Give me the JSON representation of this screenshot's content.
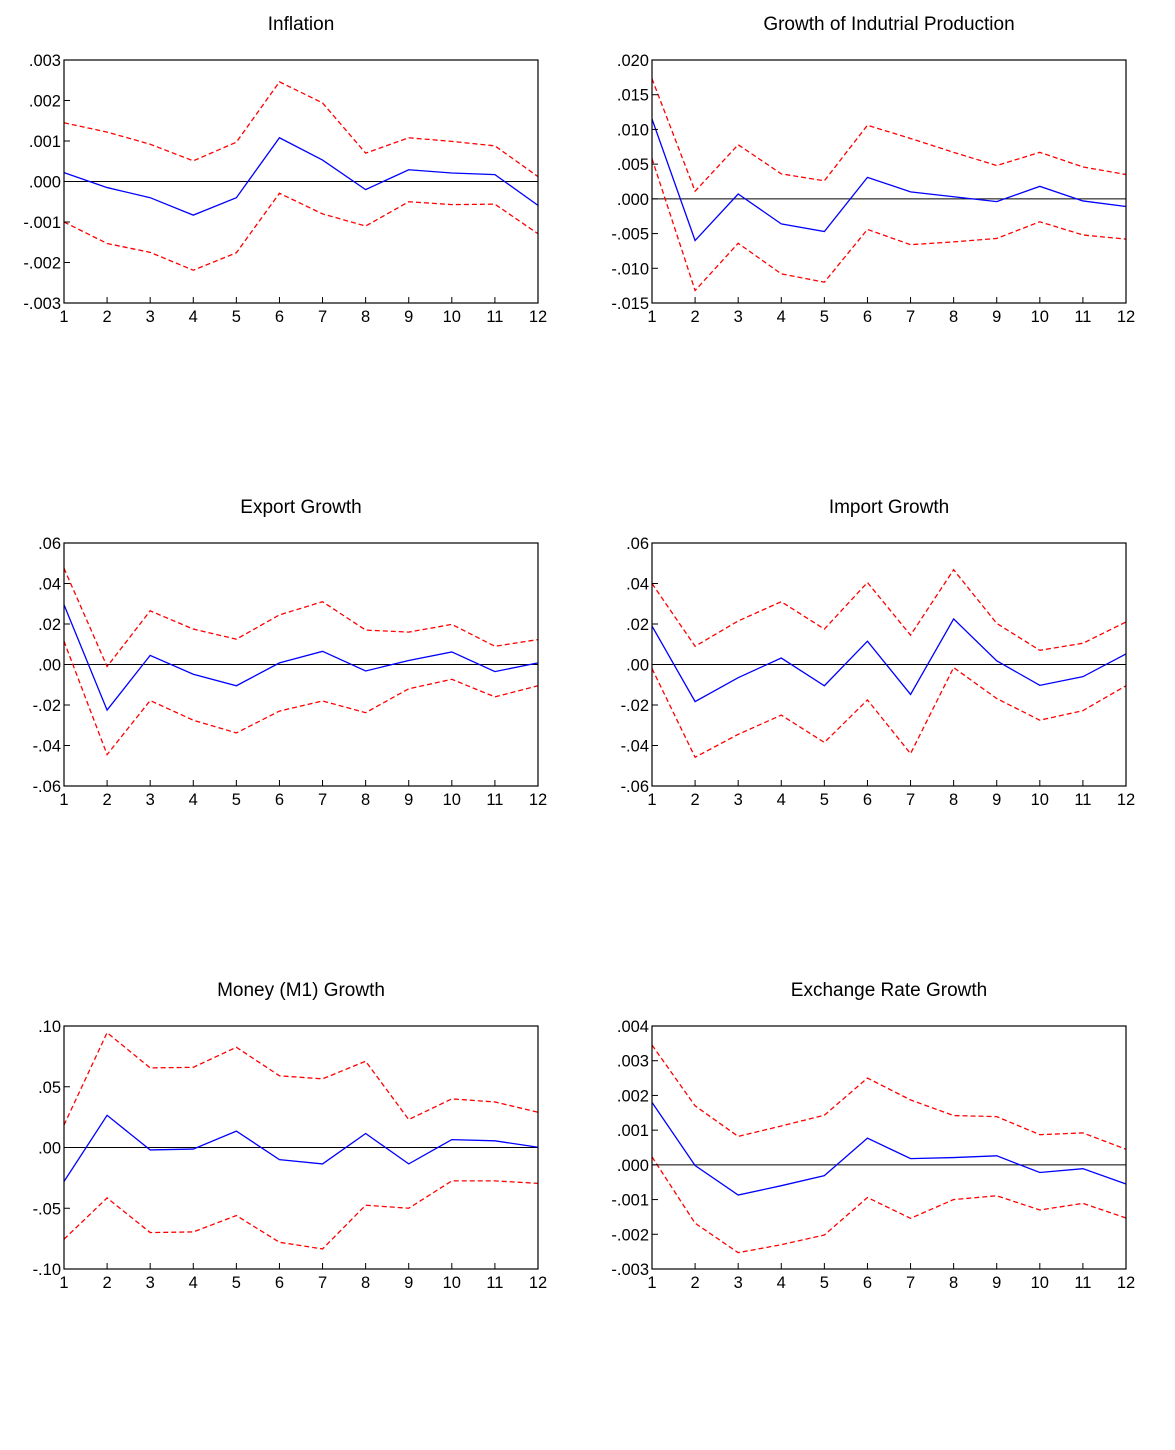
{
  "chart_data": [
    {
      "type": "line",
      "title": "Inflation",
      "x": [
        1,
        2,
        3,
        4,
        5,
        6,
        7,
        8,
        9,
        10,
        11,
        12
      ],
      "ylim": [
        -0.003,
        0.003
      ],
      "yticks": [
        0.003,
        0.002,
        0.001,
        0.0,
        -0.001,
        -0.002,
        -0.003
      ],
      "ytick_labels": [
        ".003",
        ".002",
        ".001",
        ".000",
        "-.001",
        "-.002",
        "-.003"
      ],
      "xtick_labels": [
        "1",
        "2",
        "3",
        "4",
        "5",
        "6",
        "7",
        "8",
        "9",
        "10",
        "11",
        "12"
      ],
      "zero_line": true,
      "colors": {
        "response": "#0000ff",
        "bands": "#ff0000",
        "zero": "#000000"
      },
      "series": [
        {
          "role": "response",
          "values": [
            0.00022,
            -0.00015,
            -0.0004,
            -0.00083,
            -0.0004,
            0.00108,
            0.00053,
            -0.0002,
            0.00029,
            0.00021,
            0.00017,
            -0.00059
          ]
        },
        {
          "role": "upper",
          "values": [
            0.00145,
            0.00122,
            0.00092,
            0.00051,
            0.00097,
            0.00246,
            0.00194,
            0.0007,
            0.00108,
            0.00099,
            0.00088,
            0.00012
          ]
        },
        {
          "role": "lower",
          "values": [
            -0.001,
            -0.00153,
            -0.00175,
            -0.00219,
            -0.00176,
            -0.00029,
            -0.0008,
            -0.0011,
            -0.0005,
            -0.00057,
            -0.00056,
            -0.00129
          ]
        }
      ]
    },
    {
      "type": "line",
      "title": "Growth of Indutrial Production",
      "x": [
        1,
        2,
        3,
        4,
        5,
        6,
        7,
        8,
        9,
        10,
        11,
        12
      ],
      "ylim": [
        -0.015,
        0.02
      ],
      "yticks": [
        0.02,
        0.015,
        0.01,
        0.005,
        0.0,
        -0.005,
        -0.01,
        -0.015
      ],
      "ytick_labels": [
        ".020",
        ".015",
        ".010",
        ".005",
        ".000",
        "-.005",
        "-.010",
        "-.015"
      ],
      "xtick_labels": [
        "1",
        "2",
        "3",
        "4",
        "5",
        "6",
        "7",
        "8",
        "9",
        "10",
        "11",
        "12"
      ],
      "zero_line": true,
      "colors": {
        "response": "#0000ff",
        "bands": "#ff0000",
        "zero": "#000000"
      },
      "series": [
        {
          "role": "response",
          "values": [
            0.0115,
            -0.006,
            0.0007,
            -0.0036,
            -0.0047,
            0.0031,
            0.001,
            0.0003,
            -0.0004,
            0.0018,
            -0.0003,
            -0.0011
          ]
        },
        {
          "role": "upper",
          "values": [
            0.0173,
            0.0011,
            0.0078,
            0.0036,
            0.0026,
            0.0106,
            0.0087,
            0.0067,
            0.0048,
            0.0067,
            0.0046,
            0.0035
          ]
        },
        {
          "role": "lower",
          "values": [
            0.0058,
            -0.0132,
            -0.0064,
            -0.0108,
            -0.012,
            -0.0044,
            -0.0066,
            -0.0062,
            -0.0057,
            -0.0033,
            -0.0052,
            -0.0058
          ]
        }
      ]
    },
    {
      "type": "line",
      "title": "Export Growth",
      "x": [
        1,
        2,
        3,
        4,
        5,
        6,
        7,
        8,
        9,
        10,
        11,
        12
      ],
      "ylim": [
        -0.06,
        0.06
      ],
      "yticks": [
        0.06,
        0.04,
        0.02,
        0.0,
        -0.02,
        -0.04,
        -0.06
      ],
      "ytick_labels": [
        ".06",
        ".04",
        ".02",
        ".00",
        "-.02",
        "-.04",
        "-.06"
      ],
      "xtick_labels": [
        "1",
        "2",
        "3",
        "4",
        "5",
        "6",
        "7",
        "8",
        "9",
        "10",
        "11",
        "12"
      ],
      "zero_line": true,
      "colors": {
        "response": "#0000ff",
        "bands": "#ff0000",
        "zero": "#000000"
      },
      "series": [
        {
          "role": "response",
          "values": [
            0.0295,
            -0.0225,
            0.0045,
            -0.0048,
            -0.0105,
            0.0008,
            0.0065,
            -0.0032,
            0.002,
            0.0062,
            -0.0035,
            0.0008
          ]
        },
        {
          "role": "upper",
          "values": [
            0.0475,
            -0.001,
            0.0265,
            0.0175,
            0.0125,
            0.0245,
            0.031,
            0.017,
            0.016,
            0.0198,
            0.009,
            0.0123
          ]
        },
        {
          "role": "lower",
          "values": [
            0.0115,
            -0.0445,
            -0.0178,
            -0.0275,
            -0.0338,
            -0.023,
            -0.018,
            -0.0238,
            -0.012,
            -0.0073,
            -0.016,
            -0.0105
          ]
        }
      ]
    },
    {
      "type": "line",
      "title": "Import Growth",
      "x": [
        1,
        2,
        3,
        4,
        5,
        6,
        7,
        8,
        9,
        10,
        11,
        12
      ],
      "ylim": [
        -0.06,
        0.06
      ],
      "yticks": [
        0.06,
        0.04,
        0.02,
        0.0,
        -0.02,
        -0.04,
        -0.06
      ],
      "ytick_labels": [
        ".06",
        ".04",
        ".02",
        ".00",
        "-.02",
        "-.04",
        "-.06"
      ],
      "xtick_labels": [
        "1",
        "2",
        "3",
        "4",
        "5",
        "6",
        "7",
        "8",
        "9",
        "10",
        "11",
        "12"
      ],
      "zero_line": true,
      "colors": {
        "response": "#0000ff",
        "bands": "#ff0000",
        "zero": "#000000"
      },
      "series": [
        {
          "role": "response",
          "values": [
            0.019,
            -0.0183,
            -0.0065,
            0.0032,
            -0.0105,
            0.0115,
            -0.0148,
            0.0225,
            0.0018,
            -0.0103,
            -0.006,
            0.0052
          ]
        },
        {
          "role": "upper",
          "values": [
            0.04,
            0.009,
            0.0215,
            0.031,
            0.0175,
            0.0405,
            0.0145,
            0.0468,
            0.0203,
            0.007,
            0.0105,
            0.021
          ]
        },
        {
          "role": "lower",
          "values": [
            -0.002,
            -0.0458,
            -0.0345,
            -0.025,
            -0.0385,
            -0.0175,
            -0.044,
            -0.0015,
            -0.0168,
            -0.0275,
            -0.0228,
            -0.0105
          ]
        }
      ]
    },
    {
      "type": "line",
      "title": "Money (M1) Growth",
      "x": [
        1,
        2,
        3,
        4,
        5,
        6,
        7,
        8,
        9,
        10,
        11,
        12
      ],
      "ylim": [
        -0.1,
        0.1
      ],
      "yticks": [
        0.1,
        0.05,
        0.0,
        -0.05,
        -0.1
      ],
      "ytick_labels": [
        ".10",
        ".05",
        ".00",
        "-.05",
        "-.10"
      ],
      "xtick_labels": [
        "1",
        "2",
        "3",
        "4",
        "5",
        "6",
        "7",
        "8",
        "9",
        "10",
        "11",
        "12"
      ],
      "zero_line": true,
      "colors": {
        "response": "#0000ff",
        "bands": "#ff0000",
        "zero": "#000000"
      },
      "series": [
        {
          "role": "response",
          "values": [
            -0.028,
            0.0265,
            -0.002,
            -0.0013,
            0.0135,
            -0.01,
            -0.0135,
            0.0115,
            -0.0135,
            0.0065,
            0.0055,
            0.0002
          ]
        },
        {
          "role": "upper",
          "values": [
            0.0185,
            0.0945,
            0.0655,
            0.066,
            0.0825,
            0.059,
            0.0565,
            0.071,
            0.023,
            0.04,
            0.0375,
            0.029
          ]
        },
        {
          "role": "lower",
          "values": [
            -0.0755,
            -0.0415,
            -0.07,
            -0.0695,
            -0.056,
            -0.078,
            -0.0835,
            -0.0475,
            -0.05,
            -0.0275,
            -0.0275,
            -0.0295
          ]
        }
      ]
    },
    {
      "type": "line",
      "title": "Exchange Rate Growth",
      "x": [
        1,
        2,
        3,
        4,
        5,
        6,
        7,
        8,
        9,
        10,
        11,
        12
      ],
      "ylim": [
        -0.003,
        0.004
      ],
      "yticks": [
        0.004,
        0.003,
        0.002,
        0.001,
        0.0,
        -0.001,
        -0.002,
        -0.003
      ],
      "ytick_labels": [
        ".004",
        ".003",
        ".002",
        ".001",
        ".000",
        "-.001",
        "-.002",
        "-.003"
      ],
      "xtick_labels": [
        "1",
        "2",
        "3",
        "4",
        "5",
        "6",
        "7",
        "8",
        "9",
        "10",
        "11",
        "12"
      ],
      "zero_line": true,
      "colors": {
        "response": "#0000ff",
        "bands": "#ff0000",
        "zero": "#000000"
      },
      "series": [
        {
          "role": "response",
          "values": [
            0.0018,
            -2e-05,
            -0.00087,
            -0.0006,
            -0.00031,
            0.00077,
            0.00018,
            0.00021,
            0.00026,
            -0.00022,
            -0.00011,
            -0.00055
          ]
        },
        {
          "role": "upper",
          "values": [
            0.00345,
            0.0017,
            0.00082,
            0.00112,
            0.00143,
            0.0025,
            0.00187,
            0.00142,
            0.00139,
            0.00087,
            0.00092,
            0.00045
          ]
        },
        {
          "role": "lower",
          "values": [
            0.00023,
            -0.00168,
            -0.00253,
            -0.0023,
            -0.00202,
            -0.00094,
            -0.00154,
            -0.001,
            -0.00089,
            -0.0013,
            -0.00111,
            -0.00153
          ]
        }
      ]
    }
  ]
}
